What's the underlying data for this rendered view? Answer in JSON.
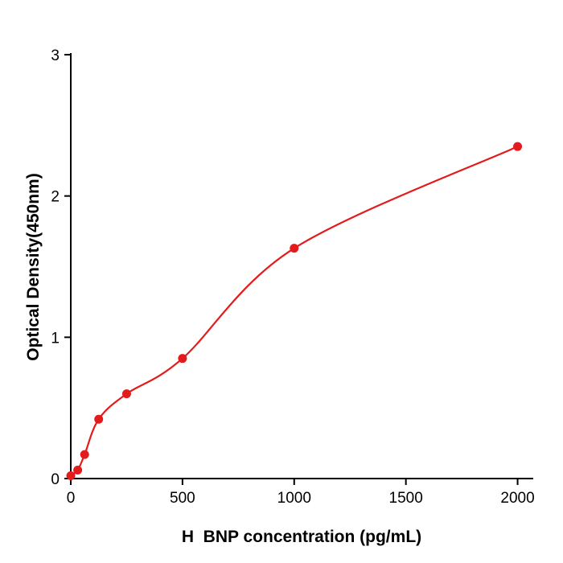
{
  "chart_data": {
    "type": "scatter",
    "title": "",
    "xlabel": "H  BNP concentration (pg/mL)",
    "ylabel": "Optical Density(450nm)",
    "x": [
      0,
      31,
      62,
      125,
      250,
      500,
      1000,
      2000
    ],
    "y": [
      0.02,
      0.06,
      0.17,
      0.42,
      0.6,
      0.85,
      1.63,
      2.35
    ],
    "xlim": [
      0,
      2070
    ],
    "ylim": [
      0,
      3
    ],
    "xticks": [
      0,
      500,
      1000,
      1500,
      2000
    ],
    "yticks": [
      0,
      1,
      2,
      3
    ],
    "grid": false,
    "legend": null,
    "curve_color": "#e31b1c",
    "point_color": "#e31b1c",
    "axis_color": "#000000"
  }
}
